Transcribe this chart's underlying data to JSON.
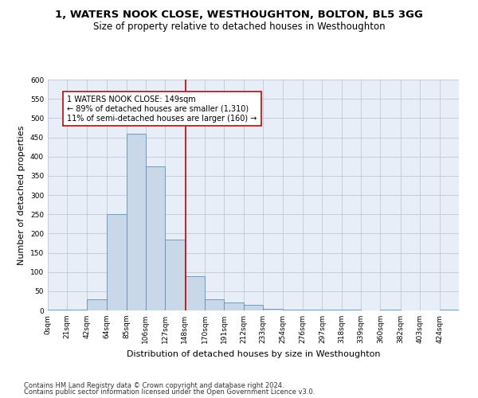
{
  "title1": "1, WATERS NOOK CLOSE, WESTHOUGHTON, BOLTON, BL5 3GG",
  "title2": "Size of property relative to detached houses in Westhoughton",
  "xlabel": "Distribution of detached houses by size in Westhoughton",
  "ylabel": "Number of detached properties",
  "bin_labels": [
    "0sqm",
    "21sqm",
    "42sqm",
    "64sqm",
    "85sqm",
    "106sqm",
    "127sqm",
    "148sqm",
    "170sqm",
    "191sqm",
    "212sqm",
    "233sqm",
    "254sqm",
    "276sqm",
    "297sqm",
    "318sqm",
    "339sqm",
    "360sqm",
    "382sqm",
    "403sqm",
    "424sqm"
  ],
  "bin_edges": [
    0,
    21,
    42,
    64,
    85,
    106,
    127,
    148,
    170,
    191,
    212,
    233,
    254,
    276,
    297,
    318,
    339,
    360,
    382,
    403,
    424,
    445
  ],
  "bar_heights": [
    2,
    2,
    30,
    250,
    460,
    375,
    185,
    90,
    30,
    20,
    15,
    5,
    2,
    2,
    2,
    2,
    0,
    2,
    0,
    0,
    2
  ],
  "bar_color": "#c8d8e8",
  "bar_edge_color": "#6090b8",
  "property_sqm": 149,
  "vline_color": "#cc0000",
  "annotation_text": "1 WATERS NOOK CLOSE: 149sqm\n← 89% of detached houses are smaller (1,310)\n11% of semi-detached houses are larger (160) →",
  "annotation_box_color": "#ffffff",
  "annotation_box_edge_color": "#cc0000",
  "ylim": [
    0,
    600
  ],
  "yticks": [
    0,
    50,
    100,
    150,
    200,
    250,
    300,
    350,
    400,
    450,
    500,
    550,
    600
  ],
  "grid_color": "#c0c8d8",
  "background_color": "#e8eef8",
  "footnote1": "Contains HM Land Registry data © Crown copyright and database right 2024.",
  "footnote2": "Contains public sector information licensed under the Open Government Licence v3.0.",
  "title1_fontsize": 9.5,
  "title2_fontsize": 8.5,
  "xlabel_fontsize": 8,
  "ylabel_fontsize": 8,
  "tick_fontsize": 6.5,
  "annotation_fontsize": 7,
  "footnote_fontsize": 6
}
